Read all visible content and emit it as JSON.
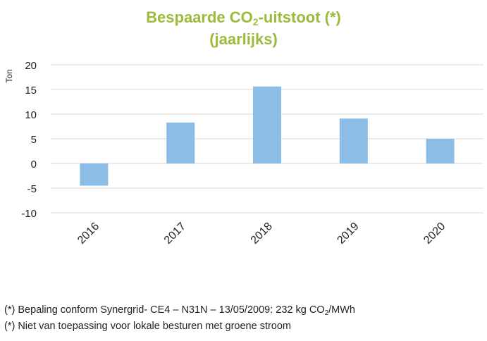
{
  "chart_data": {
    "type": "bar",
    "title": {
      "prefix": "Bespaarde CO",
      "subscript": "2",
      "suffix": "-uitstoot (*)",
      "line2": "(jaarlijks)"
    },
    "xlabel": "",
    "ylabel": "Ton",
    "categories": [
      "2016",
      "2017",
      "2018",
      "2019",
      "2020"
    ],
    "values": [
      -4.5,
      8.3,
      15.6,
      9.1,
      5.0
    ],
    "yticks": [
      20,
      15,
      10,
      5,
      0,
      -5,
      -10
    ],
    "ylim": [
      -10,
      20
    ],
    "grid": true,
    "legend": "none",
    "bar_color": "#8bbde6",
    "grid_color": "#d9d9d9",
    "title_color": "#9bbb3c"
  },
  "footnotes": {
    "line1": {
      "prefix": "(*) Bepaling conform Synergrid- CE4 – N31N – 13/05/2009: 232 kg CO",
      "subscript": "2",
      "suffix": "/MWh"
    },
    "line2": "(*) Niet van toepassing voor lokale besturen met groene stroom"
  }
}
